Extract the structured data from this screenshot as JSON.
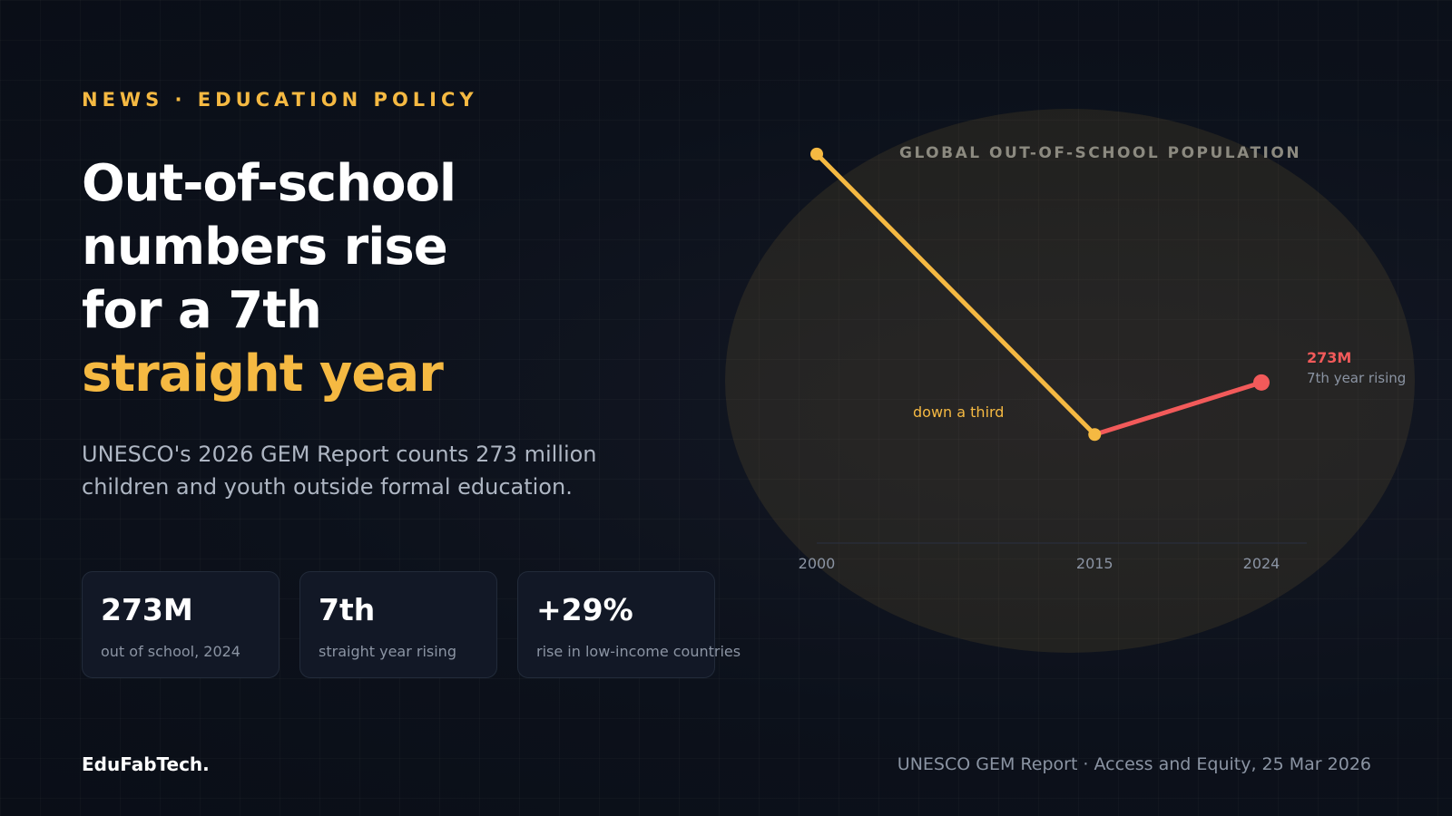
{
  "kicker": "NEWS · EDUCATION POLICY",
  "headline": {
    "line1": "Out-of-school",
    "line2": "numbers rise",
    "line3": "for a 7th",
    "accent_line": "straight year"
  },
  "subtitle": "UNESCO's 2026 GEM Report counts 273 million children and youth outside formal education.",
  "stats": [
    {
      "value": "273M",
      "label": "out of school, 2024"
    },
    {
      "value": "7th",
      "label": "straight year rising"
    },
    {
      "value": "+29%",
      "label": "rise in low-income countries"
    }
  ],
  "footer": {
    "brand": "EduFabTech.",
    "source": "UNESCO GEM Report · Access and Equity, 25 Mar 2026"
  },
  "colors": {
    "accent": "#f5b942",
    "decline_line": "#f5b942",
    "rise_line": "#f25a5a"
  },
  "chart_data": {
    "type": "line",
    "title": "GLOBAL OUT-OF-SCHOOL POPULATION",
    "x": [
      "2000",
      "2015",
      "2024"
    ],
    "series": [
      {
        "values": [
          374,
          250,
          273
        ]
      }
    ],
    "ylim": [
      200,
      400
    ],
    "xlabel": "",
    "ylabel": "",
    "grid": false,
    "annotations": [
      {
        "text": "down a third"
      },
      {
        "text": "273M",
        "subtext": "7th year rising"
      }
    ]
  }
}
